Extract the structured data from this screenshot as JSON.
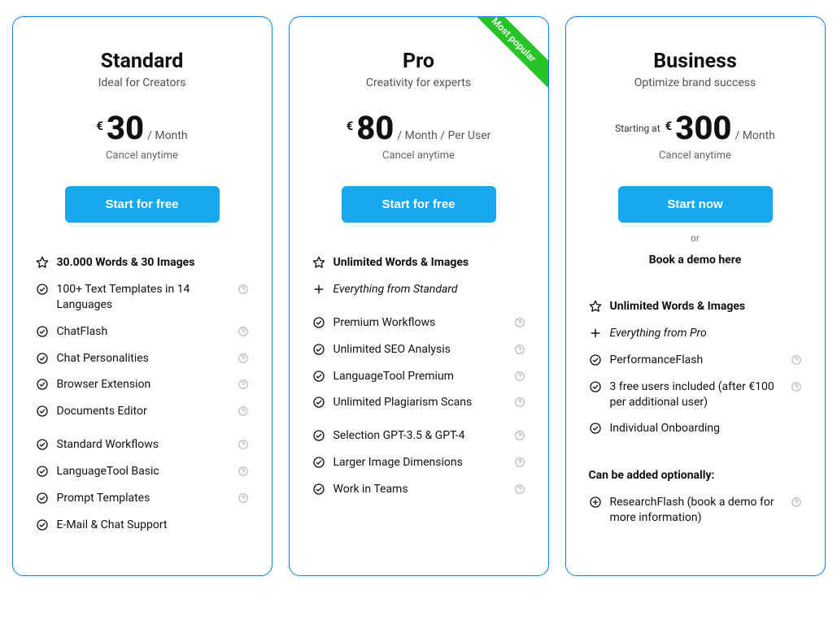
{
  "ribbon_text": "Most popular",
  "plans": [
    {
      "name": "Standard",
      "tagline": "Ideal for Creators",
      "currency": "€",
      "amount": "30",
      "per": "/  Month",
      "starting_at": "",
      "cancel": "Cancel anytime",
      "cta": "Start for free",
      "or": "",
      "demo": "",
      "ribbon": false,
      "groups": [
        [
          {
            "icon": "star",
            "bold": true,
            "italic": false,
            "help": false,
            "text": "30.000 Words & 30 Images"
          },
          {
            "icon": "check",
            "bold": false,
            "italic": false,
            "help": true,
            "text": "100+ Text Templates in 14 Languages"
          },
          {
            "icon": "check",
            "bold": false,
            "italic": false,
            "help": true,
            "text": "ChatFlash"
          },
          {
            "icon": "check",
            "bold": false,
            "italic": false,
            "help": true,
            "text": "Chat Personalities"
          },
          {
            "icon": "check",
            "bold": false,
            "italic": false,
            "help": true,
            "text": "Browser Extension"
          },
          {
            "icon": "check",
            "bold": false,
            "italic": false,
            "help": true,
            "text": "Documents Editor"
          }
        ],
        [
          {
            "icon": "check",
            "bold": false,
            "italic": false,
            "help": true,
            "text": "Standard Workflows"
          },
          {
            "icon": "check",
            "bold": false,
            "italic": false,
            "help": true,
            "text": "LanguageTool Basic"
          },
          {
            "icon": "check",
            "bold": false,
            "italic": false,
            "help": true,
            "text": "Prompt Templates"
          },
          {
            "icon": "check",
            "bold": false,
            "italic": false,
            "help": false,
            "text": "E-Mail & Chat Support"
          }
        ]
      ],
      "optional_heading": "",
      "optional": []
    },
    {
      "name": "Pro",
      "tagline": "Creativity for experts",
      "currency": "€",
      "amount": "80",
      "per": "/  Month / Per User",
      "starting_at": "",
      "cancel": "Cancel anytime",
      "cta": "Start for free",
      "or": "",
      "demo": "",
      "ribbon": true,
      "groups": [
        [
          {
            "icon": "star",
            "bold": true,
            "italic": false,
            "help": false,
            "text": "Unlimited Words & Images"
          },
          {
            "icon": "plus",
            "bold": false,
            "italic": true,
            "help": false,
            "text": "Everything from Standard"
          }
        ],
        [
          {
            "icon": "check",
            "bold": false,
            "italic": false,
            "help": true,
            "text": "Premium Workflows"
          },
          {
            "icon": "check",
            "bold": false,
            "italic": false,
            "help": true,
            "text": "Unlimited SEO Analysis"
          },
          {
            "icon": "check",
            "bold": false,
            "italic": false,
            "help": true,
            "text": "LanguageTool Premium"
          },
          {
            "icon": "check",
            "bold": false,
            "italic": false,
            "help": true,
            "text": "Unlimited Plagiarism Scans"
          }
        ],
        [
          {
            "icon": "check",
            "bold": false,
            "italic": false,
            "help": true,
            "text": "Selection GPT-3.5 & GPT-4"
          },
          {
            "icon": "check",
            "bold": false,
            "italic": false,
            "help": true,
            "text": "Larger Image Dimensions"
          },
          {
            "icon": "check",
            "bold": false,
            "italic": false,
            "help": true,
            "text": "Work in Teams"
          }
        ]
      ],
      "optional_heading": "",
      "optional": []
    },
    {
      "name": "Business",
      "tagline": "Optimize brand success",
      "currency": "€",
      "amount": "300",
      "per": "/  Month",
      "starting_at": "Starting at",
      "cancel": "Cancel anytime",
      "cta": "Start now",
      "or": "or",
      "demo": "Book a demo here",
      "ribbon": false,
      "groups": [
        [
          {
            "icon": "star",
            "bold": true,
            "italic": false,
            "help": false,
            "text": "Unlimited Words & Images"
          },
          {
            "icon": "plus",
            "bold": false,
            "italic": true,
            "help": false,
            "text": "Everything from Pro"
          },
          {
            "icon": "check",
            "bold": false,
            "italic": false,
            "help": true,
            "text": "PerformanceFlash"
          },
          {
            "icon": "check",
            "bold": false,
            "italic": false,
            "help": true,
            "text": "3 free users included (after €100 per additional user)"
          },
          {
            "icon": "check",
            "bold": false,
            "italic": false,
            "help": false,
            "text": "Individual Onboarding"
          }
        ]
      ],
      "optional_heading": "Can be added optionally:",
      "optional": [
        {
          "icon": "plus-circle",
          "bold": false,
          "italic": false,
          "help": true,
          "text": "ResearchFlash (book a demo for more information)"
        }
      ]
    }
  ]
}
